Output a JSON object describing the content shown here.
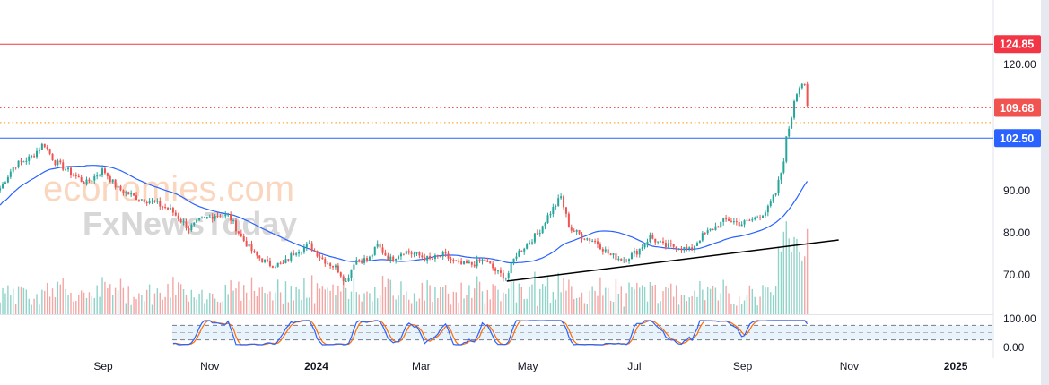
{
  "watermark": {
    "line1": "economies.com",
    "line2": "FxNewsToday"
  },
  "chart_data": {
    "type": "candlestick",
    "title": "",
    "x_unit": "days since 2023-09-01",
    "xlim": [
      -59,
      488
    ],
    "ylim": [
      63,
      127
    ],
    "y_ticks": [
      "120.00",
      "90.00",
      "80.00",
      "70.00"
    ],
    "y_tick_values": [
      120,
      90,
      80,
      70
    ],
    "x_ticks": [
      {
        "label": "Sep",
        "day": 0
      },
      {
        "label": "Nov",
        "day": 61
      },
      {
        "label": "2024",
        "day": 122
      },
      {
        "label": "Mar",
        "day": 182
      },
      {
        "label": "May",
        "day": 243
      },
      {
        "label": "Jul",
        "day": 304
      },
      {
        "label": "Sep",
        "day": 366
      },
      {
        "label": "Nov",
        "day": 427
      },
      {
        "label": "2025",
        "day": 488
      }
    ],
    "close_path": [
      [
        -59,
        90.6
      ],
      [
        -51,
        96
      ],
      [
        -41,
        98
      ],
      [
        -34,
        101.3
      ],
      [
        -28,
        97
      ],
      [
        -21,
        95
      ],
      [
        -10,
        91.7
      ],
      [
        0,
        95
      ],
      [
        8,
        90.6
      ],
      [
        18,
        88.5
      ],
      [
        28,
        87.4
      ],
      [
        39,
        85.3
      ],
      [
        49,
        81
      ],
      [
        56,
        83
      ],
      [
        64,
        84.3
      ],
      [
        72,
        84
      ],
      [
        79,
        79
      ],
      [
        87,
        74.7
      ],
      [
        95,
        72.5
      ],
      [
        103,
        72.5
      ],
      [
        110,
        75.7
      ],
      [
        118,
        77
      ],
      [
        126,
        73.6
      ],
      [
        134,
        71.5
      ],
      [
        139,
        68.3
      ],
      [
        144,
        73.6
      ],
      [
        152,
        73.6
      ],
      [
        157,
        77
      ],
      [
        164,
        73.6
      ],
      [
        172,
        75.7
      ],
      [
        180,
        74.7
      ],
      [
        187,
        73.6
      ],
      [
        195,
        74.7
      ],
      [
        203,
        72.5
      ],
      [
        211,
        72.5
      ],
      [
        218,
        73.6
      ],
      [
        226,
        70.4
      ],
      [
        231,
        69.4
      ],
      [
        236,
        74.7
      ],
      [
        244,
        77.9
      ],
      [
        249,
        80
      ],
      [
        255,
        84.3
      ],
      [
        262,
        88.5
      ],
      [
        267,
        81
      ],
      [
        275,
        79
      ],
      [
        282,
        77.9
      ],
      [
        290,
        74.7
      ],
      [
        298,
        73.6
      ],
      [
        306,
        75.7
      ],
      [
        313,
        79
      ],
      [
        321,
        76.8
      ],
      [
        329,
        76.8
      ],
      [
        336,
        75.7
      ],
      [
        342,
        79
      ],
      [
        349,
        81
      ],
      [
        357,
        83.2
      ],
      [
        365,
        82.1
      ],
      [
        372,
        83.2
      ],
      [
        380,
        85.3
      ],
      [
        385,
        89.6
      ],
      [
        389,
        96
      ],
      [
        391,
        102.3
      ],
      [
        394,
        107.7
      ],
      [
        396,
        113
      ],
      [
        399,
        115
      ],
      [
        401,
        116.2
      ],
      [
        403,
        109.7
      ]
    ],
    "moving_average_period": 50,
    "levels": [
      {
        "label": "124.85",
        "value": 124.85,
        "color": "#f23645",
        "style": "solid"
      },
      {
        "label": "109.68",
        "value": 109.68,
        "color": "#f05350",
        "style": "dotted"
      },
      {
        "label": "",
        "value": 106.2,
        "color": "#ff9800",
        "style": "dotted"
      },
      {
        "label": "102.50",
        "value": 102.5,
        "color": "#2962ff",
        "style": "solid"
      }
    ],
    "trendline": {
      "from": [
        231,
        68.5
      ],
      "to": [
        421,
        78.3
      ],
      "color": "#000000"
    },
    "colors": {
      "up": "#26a69a",
      "down": "#ef5350",
      "ma": "#2962ff",
      "stoch_k": "#2962ff",
      "stoch_d": "#ff6d00"
    },
    "oscillator": {
      "y_ticks": [
        "100.00",
        "0.00"
      ],
      "bands": [
        80,
        50,
        20
      ],
      "period": 14
    }
  }
}
